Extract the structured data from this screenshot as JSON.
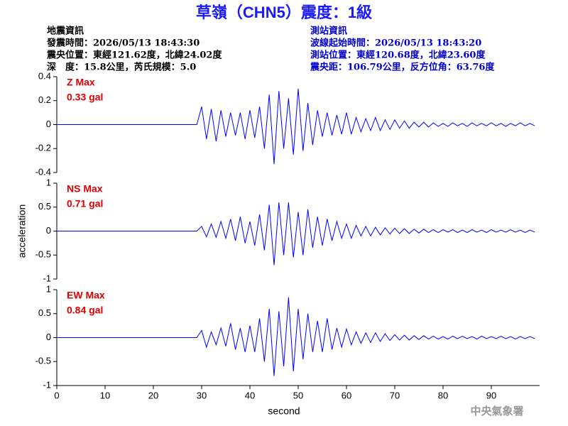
{
  "title": "草嶺（CHN5）震度：1級",
  "info_left": [
    "地震資訊",
    "發震時間：2026/05/13 18:43:30",
    "震央位置：東經121.62度，北緯24.02度",
    "深　度：15.8公里，芮氏規模：5.0"
  ],
  "info_right": [
    "測站資訊",
    "波線起始時間：2026/05/13 18:43:20",
    "測站位置：東經120.68度，北緯23.60度",
    "震央距：106.79公里，反方位角：63.76度"
  ],
  "footer": "中央氣象署",
  "chart_data": [
    {
      "type": "line",
      "panel_label": "Z Max",
      "max_label": "0.33 gal",
      "x": [
        0,
        29,
        30,
        31,
        32,
        33,
        34,
        35,
        36,
        37,
        38,
        39,
        40,
        41,
        42,
        43,
        44,
        45,
        46,
        47,
        48,
        49,
        50,
        51,
        52,
        53,
        54,
        55,
        56,
        57,
        58,
        59,
        60,
        61,
        62,
        63,
        64,
        65,
        66,
        67,
        68,
        69,
        70,
        71,
        72,
        73,
        74,
        75,
        76,
        77,
        78,
        79,
        80,
        81,
        82,
        83,
        84,
        85,
        86,
        87,
        88,
        89,
        90,
        91,
        92,
        93,
        94,
        95,
        96,
        97,
        98,
        99
      ],
      "series": [
        {
          "color": "#0000ff",
          "values": [
            0,
            0,
            0.15,
            -0.12,
            0.13,
            -0.14,
            0.12,
            -0.1,
            0.1,
            -0.09,
            0.1,
            -0.12,
            0.12,
            -0.11,
            0.15,
            -0.2,
            0.25,
            -0.33,
            0.28,
            -0.2,
            0.22,
            -0.25,
            0.3,
            -0.22,
            0.18,
            -0.17,
            0.12,
            -0.1,
            0.1,
            -0.09,
            0.08,
            -0.08,
            0.1,
            -0.08,
            0.06,
            -0.06,
            0.05,
            -0.05,
            0.06,
            -0.05,
            0.04,
            -0.04,
            0.04,
            -0.03,
            0.03,
            -0.03,
            0.02,
            -0.02,
            0.02,
            -0.02,
            0.015,
            -0.015,
            0.01,
            -0.015,
            0.015,
            -0.01,
            0.01,
            -0.015,
            0.015,
            -0.01,
            0.01,
            -0.01,
            0.015,
            -0.01,
            0.01,
            -0.015,
            0.01,
            -0.01,
            0.015,
            -0.01,
            0.01,
            -0.01
          ]
        }
      ],
      "xlim": [
        0,
        100
      ],
      "ylim": [
        -0.4,
        0.4
      ],
      "yticks": [
        -0.4,
        -0.2,
        0,
        0.2,
        0.4
      ]
    },
    {
      "type": "line",
      "panel_label": "NS Max",
      "max_label": "0.71 gal",
      "y_label": "acceleration",
      "x": [
        0,
        29,
        30,
        31,
        32,
        33,
        34,
        35,
        36,
        37,
        38,
        39,
        40,
        41,
        42,
        43,
        44,
        45,
        46,
        47,
        48,
        49,
        50,
        51,
        52,
        53,
        54,
        55,
        56,
        57,
        58,
        59,
        60,
        61,
        62,
        63,
        64,
        65,
        66,
        67,
        68,
        69,
        70,
        71,
        72,
        73,
        74,
        75,
        76,
        77,
        78,
        79,
        80,
        81,
        82,
        83,
        84,
        85,
        86,
        87,
        88,
        89,
        90,
        91,
        92,
        93,
        94,
        95,
        96,
        97,
        98,
        99
      ],
      "series": [
        {
          "color": "#0000ff",
          "values": [
            0,
            0,
            0.1,
            -0.12,
            0.15,
            -0.13,
            0.2,
            -0.15,
            0.25,
            -0.2,
            0.3,
            -0.25,
            0.2,
            -0.3,
            0.35,
            -0.4,
            0.55,
            -0.71,
            0.6,
            -0.5,
            0.6,
            -0.55,
            0.4,
            -0.5,
            0.45,
            -0.35,
            0.3,
            -0.3,
            0.25,
            -0.2,
            0.2,
            -0.15,
            0.15,
            -0.15,
            0.12,
            -0.1,
            0.1,
            -0.1,
            0.08,
            -0.08,
            0.07,
            -0.06,
            0.06,
            -0.05,
            0.05,
            -0.05,
            0.04,
            -0.04,
            0.04,
            -0.03,
            0.03,
            -0.03,
            0.03,
            -0.02,
            0.03,
            -0.03,
            0.02,
            -0.03,
            0.03,
            -0.02,
            0.02,
            -0.03,
            0.03,
            -0.02,
            0.02,
            -0.02,
            0.03,
            -0.02,
            0.02,
            -0.03,
            0.02,
            -0.02
          ]
        }
      ],
      "xlim": [
        0,
        100
      ],
      "ylim": [
        -1,
        1
      ],
      "yticks": [
        -1,
        -0.5,
        0,
        0.5,
        1
      ]
    },
    {
      "type": "line",
      "panel_label": "EW Max",
      "max_label": "0.84 gal",
      "x_label": "second",
      "x": [
        0,
        29,
        30,
        31,
        32,
        33,
        34,
        35,
        36,
        37,
        38,
        39,
        40,
        41,
        42,
        43,
        44,
        45,
        46,
        47,
        48,
        49,
        50,
        51,
        52,
        53,
        54,
        55,
        56,
        57,
        58,
        59,
        60,
        61,
        62,
        63,
        64,
        65,
        66,
        67,
        68,
        69,
        70,
        71,
        72,
        73,
        74,
        75,
        76,
        77,
        78,
        79,
        80,
        81,
        82,
        83,
        84,
        85,
        86,
        87,
        88,
        89,
        90,
        91,
        92,
        93,
        94,
        95,
        96,
        97,
        98,
        99
      ],
      "series": [
        {
          "color": "#0000ff",
          "values": [
            0,
            0,
            0.15,
            -0.2,
            0.12,
            -0.15,
            0.2,
            -0.18,
            0.3,
            -0.25,
            0.2,
            -0.3,
            0.25,
            -0.3,
            0.4,
            -0.5,
            0.6,
            -0.8,
            0.55,
            -0.6,
            0.84,
            -0.7,
            0.6,
            -0.45,
            0.5,
            -0.3,
            0.35,
            -0.3,
            0.4,
            -0.25,
            0.2,
            -0.2,
            0.18,
            -0.15,
            0.12,
            -0.12,
            0.1,
            -0.1,
            0.1,
            -0.08,
            0.08,
            -0.06,
            0.06,
            -0.05,
            0.05,
            -0.05,
            0.04,
            -0.04,
            0.04,
            -0.03,
            0.03,
            -0.03,
            0.02,
            -0.03,
            0.03,
            -0.02,
            0.03,
            -0.02,
            0.02,
            -0.03,
            0.03,
            -0.02,
            0.02,
            -0.02,
            0.03,
            -0.02,
            0.02,
            -0.03,
            0.02,
            -0.02,
            0.02,
            -0.02
          ]
        }
      ],
      "xlim": [
        0,
        100
      ],
      "ylim": [
        -1,
        1
      ],
      "yticks": [
        -1,
        -0.5,
        0,
        0.5,
        1
      ],
      "xticks": [
        0,
        10,
        20,
        30,
        40,
        50,
        60,
        70,
        80,
        90
      ]
    }
  ]
}
